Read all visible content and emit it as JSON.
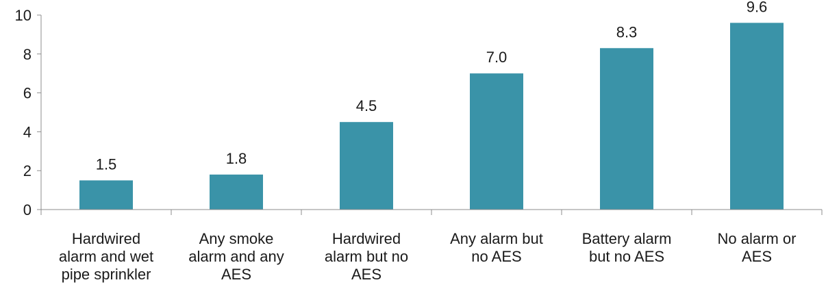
{
  "chart_data": {
    "type": "bar",
    "title": "",
    "xlabel": "",
    "ylabel": "",
    "categories": [
      [
        "Hardwired",
        "alarm and wet",
        "pipe sprinkler"
      ],
      [
        "Any smoke",
        "alarm and any",
        "AES"
      ],
      [
        "Hardwired",
        "alarm but no",
        "AES"
      ],
      [
        "Any alarm but",
        "no AES"
      ],
      [
        "Battery alarm",
        "but no AES"
      ],
      [
        "No alarm or",
        "AES"
      ]
    ],
    "values": [
      1.5,
      1.8,
      4.5,
      7.0,
      8.3,
      9.6
    ],
    "value_labels": [
      "1.5",
      "1.8",
      "4.5",
      "7.0",
      "8.3",
      "9.6"
    ],
    "ylim": [
      0,
      10
    ],
    "yticks": [
      0,
      2,
      4,
      6,
      8,
      10
    ],
    "ytick_labels": [
      "0",
      "2",
      "4",
      "6",
      "8",
      "10"
    ],
    "grid": false,
    "legend": "none",
    "bar_color": "#3A93A8",
    "axis_color": "#8c8c8c"
  }
}
